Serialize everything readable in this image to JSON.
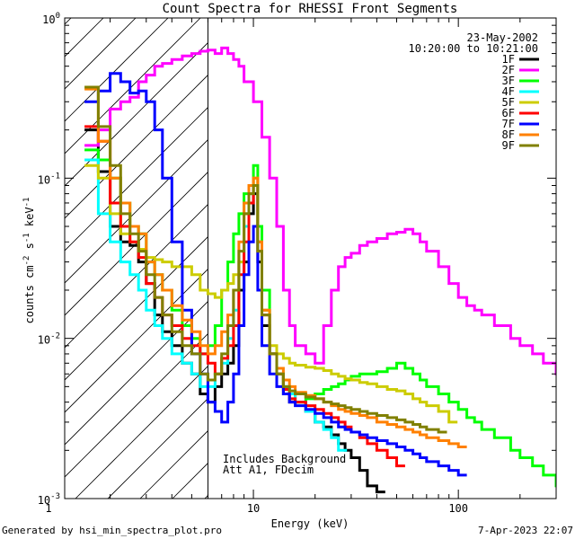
{
  "chart_data": {
    "type": "line",
    "title": "Count Spectra for RHESSI Front Segments",
    "xlabel": "Energy (keV)",
    "ylabel": "counts cm-2 s-1 keV-1",
    "ylabel_parts": {
      "base": "counts cm",
      "exp1": "-2",
      "mid1": " s",
      "exp2": "-1",
      "mid2": " keV",
      "exp3": "-1"
    },
    "xscale": "log",
    "yscale": "log",
    "xlim": [
      1.2,
      300
    ],
    "ylim": [
      0.001,
      1.0
    ],
    "x_tick_labels": [
      {
        "value": 1,
        "label": "1"
      },
      {
        "value": 10,
        "label": "10"
      },
      {
        "value": 100,
        "label": "100"
      }
    ],
    "y_tick_labels": [
      {
        "value": 1,
        "base": "10",
        "exp": "0"
      },
      {
        "value": 0.1,
        "base": "10",
        "exp": "-1"
      },
      {
        "value": 0.01,
        "base": "10",
        "exp": "-2"
      },
      {
        "value": 0.001,
        "base": "10",
        "exp": "-3"
      }
    ],
    "date": "23-May-2002",
    "time_range": "10:20:00 to 10:21:00",
    "background_note": "Includes Background",
    "atten_note": "Att A1, FDecim",
    "threshold_energy": 6.0,
    "legend_position": "top-right",
    "series": [
      {
        "name": "1F",
        "color": "#000000",
        "x": [
          1.5,
          1.75,
          2,
          2.25,
          2.5,
          2.75,
          3,
          3.3,
          3.6,
          4,
          4.5,
          5,
          5.5,
          6,
          6.5,
          7,
          7.5,
          8,
          8.5,
          9,
          9.5,
          10,
          10.5,
          11,
          12,
          13,
          14,
          15,
          16,
          18,
          20,
          22,
          24,
          26,
          28,
          30,
          33,
          36,
          40
        ],
        "values": [
          0.2,
          0.11,
          0.05,
          0.04,
          0.038,
          0.03,
          0.022,
          0.014,
          0.011,
          0.009,
          0.007,
          0.006,
          0.0045,
          0.004,
          0.005,
          0.006,
          0.007,
          0.009,
          0.02,
          0.03,
          0.06,
          0.08,
          0.03,
          0.012,
          0.008,
          0.006,
          0.0045,
          0.004,
          0.004,
          0.0035,
          0.003,
          0.0028,
          0.0025,
          0.0022,
          0.002,
          0.0018,
          0.0015,
          0.0012,
          0.0011
        ]
      },
      {
        "name": "2F",
        "color": "#ff00ff",
        "x": [
          1.5,
          1.75,
          2,
          2.25,
          2.5,
          2.75,
          3,
          3.3,
          3.6,
          4,
          4.5,
          5,
          5.5,
          6,
          6.5,
          7,
          7.5,
          8,
          8.5,
          9,
          10,
          11,
          12,
          13,
          14,
          15,
          16,
          18,
          20,
          22,
          24,
          26,
          28,
          30,
          33,
          36,
          40,
          45,
          50,
          55,
          60,
          65,
          70,
          80,
          90,
          100,
          110,
          120,
          130,
          150,
          180,
          200,
          230,
          260,
          300
        ],
        "values": [
          0.16,
          0.2,
          0.27,
          0.3,
          0.32,
          0.4,
          0.44,
          0.5,
          0.52,
          0.55,
          0.58,
          0.6,
          0.62,
          0.63,
          0.6,
          0.65,
          0.6,
          0.55,
          0.5,
          0.4,
          0.3,
          0.18,
          0.1,
          0.05,
          0.02,
          0.012,
          0.009,
          0.008,
          0.007,
          0.012,
          0.02,
          0.028,
          0.032,
          0.034,
          0.038,
          0.04,
          0.042,
          0.045,
          0.046,
          0.048,
          0.045,
          0.04,
          0.035,
          0.028,
          0.022,
          0.018,
          0.016,
          0.015,
          0.014,
          0.012,
          0.01,
          0.009,
          0.008,
          0.007,
          0.006
        ]
      },
      {
        "name": "3F",
        "color": "#00ff00",
        "x": [
          1.5,
          1.75,
          2,
          2.25,
          2.5,
          2.75,
          3,
          3.3,
          3.6,
          4,
          4.5,
          5,
          5.5,
          6,
          6.5,
          7,
          7.5,
          8,
          8.5,
          9,
          9.5,
          10,
          10.5,
          11,
          12,
          13,
          14,
          15,
          16,
          18,
          20,
          22,
          24,
          26,
          28,
          30,
          33,
          36,
          40,
          45,
          50,
          55,
          60,
          65,
          70,
          80,
          90,
          100,
          110,
          120,
          130,
          150,
          180,
          200,
          230,
          260,
          300
        ],
        "values": [
          0.15,
          0.13,
          0.1,
          0.07,
          0.05,
          0.045,
          0.03,
          0.025,
          0.02,
          0.015,
          0.012,
          0.01,
          0.008,
          0.009,
          0.012,
          0.02,
          0.03,
          0.045,
          0.06,
          0.08,
          0.09,
          0.12,
          0.05,
          0.02,
          0.008,
          0.006,
          0.005,
          0.0045,
          0.004,
          0.0042,
          0.0045,
          0.0048,
          0.005,
          0.0052,
          0.0055,
          0.0058,
          0.006,
          0.006,
          0.0062,
          0.0065,
          0.007,
          0.0065,
          0.006,
          0.0055,
          0.005,
          0.0045,
          0.004,
          0.0036,
          0.0032,
          0.003,
          0.0027,
          0.0024,
          0.002,
          0.0018,
          0.0016,
          0.0014,
          0.0012
        ]
      },
      {
        "name": "4F",
        "color": "#00ffff",
        "x": [
          1.5,
          1.75,
          2,
          2.25,
          2.5,
          2.75,
          3,
          3.3,
          3.6,
          4,
          4.5,
          5,
          5.5,
          6,
          6.5,
          7,
          7.5,
          8,
          8.5,
          9,
          9.5,
          10,
          10.5,
          11,
          12,
          13,
          14,
          15,
          16,
          18,
          20,
          22,
          24,
          26
        ],
        "values": [
          0.13,
          0.06,
          0.04,
          0.03,
          0.025,
          0.02,
          0.015,
          0.012,
          0.01,
          0.008,
          0.007,
          0.006,
          0.005,
          0.005,
          0.006,
          0.007,
          0.01,
          0.015,
          0.03,
          0.05,
          0.08,
          0.09,
          0.04,
          0.015,
          0.008,
          0.006,
          0.005,
          0.0045,
          0.004,
          0.0035,
          0.003,
          0.0027,
          0.0024,
          0.002
        ]
      },
      {
        "name": "5F",
        "color": "#cccc00",
        "x": [
          1.5,
          1.75,
          2,
          2.25,
          2.5,
          2.75,
          3,
          3.3,
          3.6,
          4,
          4.5,
          5,
          5.5,
          6,
          6.5,
          7,
          7.5,
          8,
          8.5,
          9,
          9.5,
          10,
          10.5,
          11,
          12,
          13,
          14,
          15,
          16,
          18,
          20,
          22,
          24,
          26,
          28,
          30,
          33,
          36,
          40,
          45,
          50,
          55,
          60,
          65,
          70,
          80,
          90
        ],
        "values": [
          0.12,
          0.1,
          0.06,
          0.045,
          0.04,
          0.036,
          0.032,
          0.031,
          0.03,
          0.028,
          0.028,
          0.025,
          0.02,
          0.019,
          0.018,
          0.02,
          0.022,
          0.025,
          0.03,
          0.06,
          0.08,
          0.1,
          0.04,
          0.015,
          0.009,
          0.008,
          0.0075,
          0.007,
          0.0068,
          0.0066,
          0.0065,
          0.0063,
          0.006,
          0.0058,
          0.0056,
          0.0055,
          0.0053,
          0.0052,
          0.005,
          0.0048,
          0.0047,
          0.0045,
          0.0042,
          0.004,
          0.0038,
          0.0035,
          0.003
        ]
      },
      {
        "name": "6F",
        "color": "#ff0000",
        "x": [
          1.5,
          1.75,
          2,
          2.25,
          2.5,
          2.75,
          3,
          3.3,
          3.6,
          4,
          4.5,
          5,
          5.5,
          6,
          6.5,
          7,
          7.5,
          8,
          8.5,
          9,
          9.5,
          10,
          10.5,
          11,
          12,
          13,
          14,
          15,
          16,
          18,
          20,
          22,
          24,
          26,
          28,
          30,
          33,
          36,
          40,
          45,
          50
        ],
        "values": [
          0.21,
          0.17,
          0.07,
          0.05,
          0.04,
          0.032,
          0.022,
          0.018,
          0.014,
          0.012,
          0.01,
          0.009,
          0.008,
          0.007,
          0.006,
          0.0075,
          0.009,
          0.012,
          0.025,
          0.04,
          0.07,
          0.09,
          0.035,
          0.014,
          0.008,
          0.006,
          0.0048,
          0.0042,
          0.004,
          0.0038,
          0.0036,
          0.0034,
          0.0032,
          0.003,
          0.0028,
          0.0026,
          0.0024,
          0.0022,
          0.002,
          0.0018,
          0.0016
        ]
      },
      {
        "name": "7F",
        "color": "#0000ff",
        "x": [
          1.5,
          1.75,
          2,
          2.25,
          2.5,
          2.75,
          3,
          3.3,
          3.6,
          4,
          4.5,
          5,
          5.5,
          6,
          6.5,
          7,
          7.5,
          8,
          8.5,
          9,
          9.5,
          10,
          10.5,
          11,
          12,
          13,
          14,
          15,
          16,
          18,
          20,
          22,
          24,
          26,
          28,
          30,
          33,
          36,
          40,
          45,
          50,
          55,
          60,
          65,
          70,
          80,
          90,
          100
        ],
        "values": [
          0.3,
          0.35,
          0.45,
          0.4,
          0.34,
          0.35,
          0.3,
          0.2,
          0.1,
          0.04,
          0.015,
          0.008,
          0.006,
          0.004,
          0.0035,
          0.003,
          0.004,
          0.006,
          0.012,
          0.025,
          0.04,
          0.05,
          0.02,
          0.009,
          0.006,
          0.005,
          0.0045,
          0.004,
          0.0038,
          0.0036,
          0.0034,
          0.0032,
          0.003,
          0.0028,
          0.0027,
          0.0026,
          0.0025,
          0.0024,
          0.0023,
          0.0022,
          0.0021,
          0.002,
          0.0019,
          0.0018,
          0.0017,
          0.0016,
          0.0015,
          0.0014
        ]
      },
      {
        "name": "8F",
        "color": "#ff8000",
        "x": [
          1.5,
          1.75,
          2,
          2.25,
          2.5,
          2.75,
          3,
          3.3,
          3.6,
          4,
          4.5,
          5,
          5.5,
          6,
          6.5,
          7,
          7.5,
          8,
          8.5,
          9,
          9.5,
          10,
          10.5,
          11,
          12,
          13,
          14,
          15,
          16,
          18,
          20,
          22,
          24,
          26,
          28,
          30,
          33,
          36,
          40,
          45,
          50,
          55,
          60,
          65,
          70,
          80,
          90,
          100
        ],
        "values": [
          0.36,
          0.17,
          0.1,
          0.07,
          0.05,
          0.045,
          0.03,
          0.025,
          0.02,
          0.016,
          0.013,
          0.011,
          0.009,
          0.008,
          0.009,
          0.011,
          0.014,
          0.02,
          0.04,
          0.07,
          0.09,
          0.1,
          0.04,
          0.015,
          0.008,
          0.0065,
          0.0055,
          0.005,
          0.0046,
          0.0044,
          0.0042,
          0.004,
          0.0038,
          0.0036,
          0.0035,
          0.0034,
          0.0033,
          0.0032,
          0.003,
          0.0029,
          0.0028,
          0.0027,
          0.0026,
          0.0025,
          0.0024,
          0.0023,
          0.0022,
          0.0021
        ]
      },
      {
        "name": "9F",
        "color": "#808000",
        "x": [
          1.5,
          1.75,
          2,
          2.25,
          2.5,
          2.75,
          3,
          3.3,
          3.6,
          4,
          4.5,
          5,
          5.5,
          6,
          6.5,
          7,
          7.5,
          8,
          8.5,
          9,
          9.5,
          10,
          10.5,
          11,
          12,
          13,
          14,
          15,
          16,
          18,
          20,
          22,
          24,
          26,
          28,
          30,
          33,
          36,
          40,
          45,
          50,
          55,
          60,
          65,
          70,
          80
        ],
        "values": [
          0.37,
          0.21,
          0.12,
          0.06,
          0.045,
          0.035,
          0.025,
          0.018,
          0.014,
          0.011,
          0.009,
          0.008,
          0.006,
          0.0055,
          0.006,
          0.008,
          0.012,
          0.02,
          0.035,
          0.06,
          0.08,
          0.09,
          0.035,
          0.014,
          0.008,
          0.006,
          0.005,
          0.0047,
          0.0045,
          0.0043,
          0.0042,
          0.004,
          0.0039,
          0.0038,
          0.0037,
          0.0036,
          0.0035,
          0.0034,
          0.0033,
          0.0032,
          0.0031,
          0.003,
          0.0029,
          0.0028,
          0.0027,
          0.0026
        ]
      }
    ]
  },
  "footer": {
    "left": "Generated by hsi_min_spectra_plot.pro",
    "right": "7-Apr-2023 22:07"
  }
}
